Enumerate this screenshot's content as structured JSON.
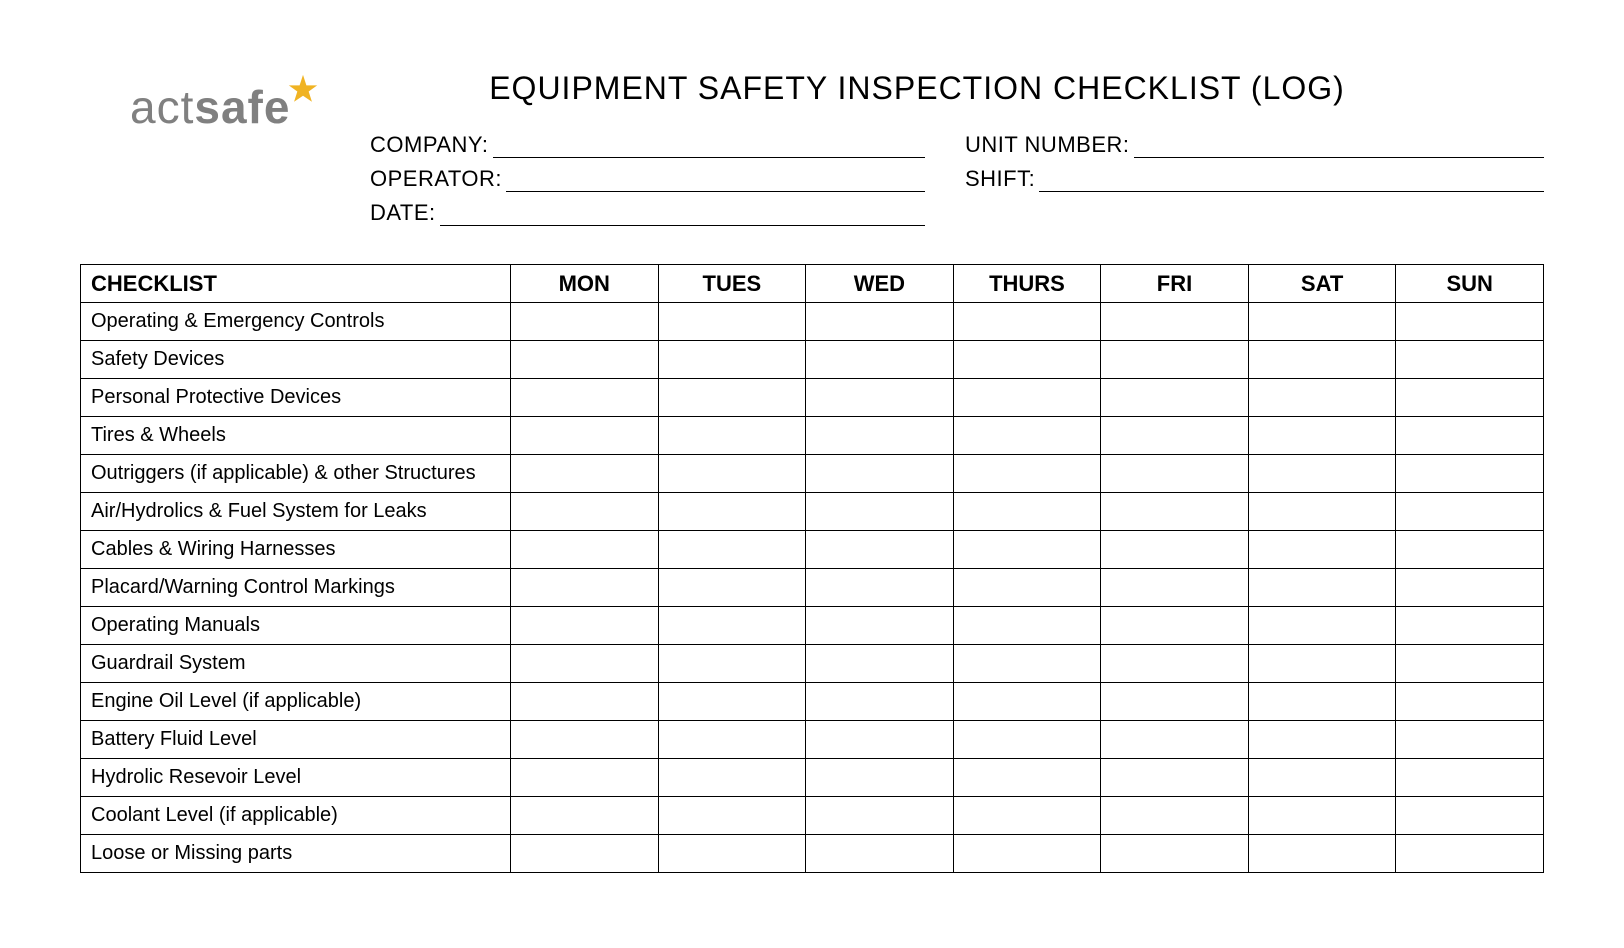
{
  "logo": {
    "part1": "act",
    "part2": "safe"
  },
  "title": "EQUIPMENT SAFETY INSPECTION CHECKLIST (LOG)",
  "fields": {
    "company": "COMPANY:",
    "unit_number": "UNIT NUMBER:",
    "operator": "OPERATOR:",
    "shift": "SHIFT:",
    "date": "DATE:"
  },
  "table": {
    "header": {
      "checklist": "CHECKLIST",
      "days": [
        "MON",
        "TUES",
        "WED",
        "THURS",
        "FRI",
        "SAT",
        "SUN"
      ]
    },
    "rows": [
      "Operating & Emergency Controls",
      "Safety Devices",
      "Personal Protective Devices",
      "Tires & Wheels",
      "Outriggers (if applicable) & other Structures",
      "Air/Hydrolics & Fuel System for Leaks",
      "Cables & Wiring Harnesses",
      "Placard/Warning Control Markings",
      "Operating Manuals",
      "Guardrail System",
      "Engine Oil Level (if applicable)",
      "Battery Fluid Level",
      "Hydrolic Resevoir Level",
      "Coolant Level (if applicable)",
      "Loose or Missing parts"
    ]
  },
  "colors": {
    "logo_gray": "#808080",
    "logo_star": "#f0b323",
    "border": "#000000",
    "background": "#ffffff"
  }
}
